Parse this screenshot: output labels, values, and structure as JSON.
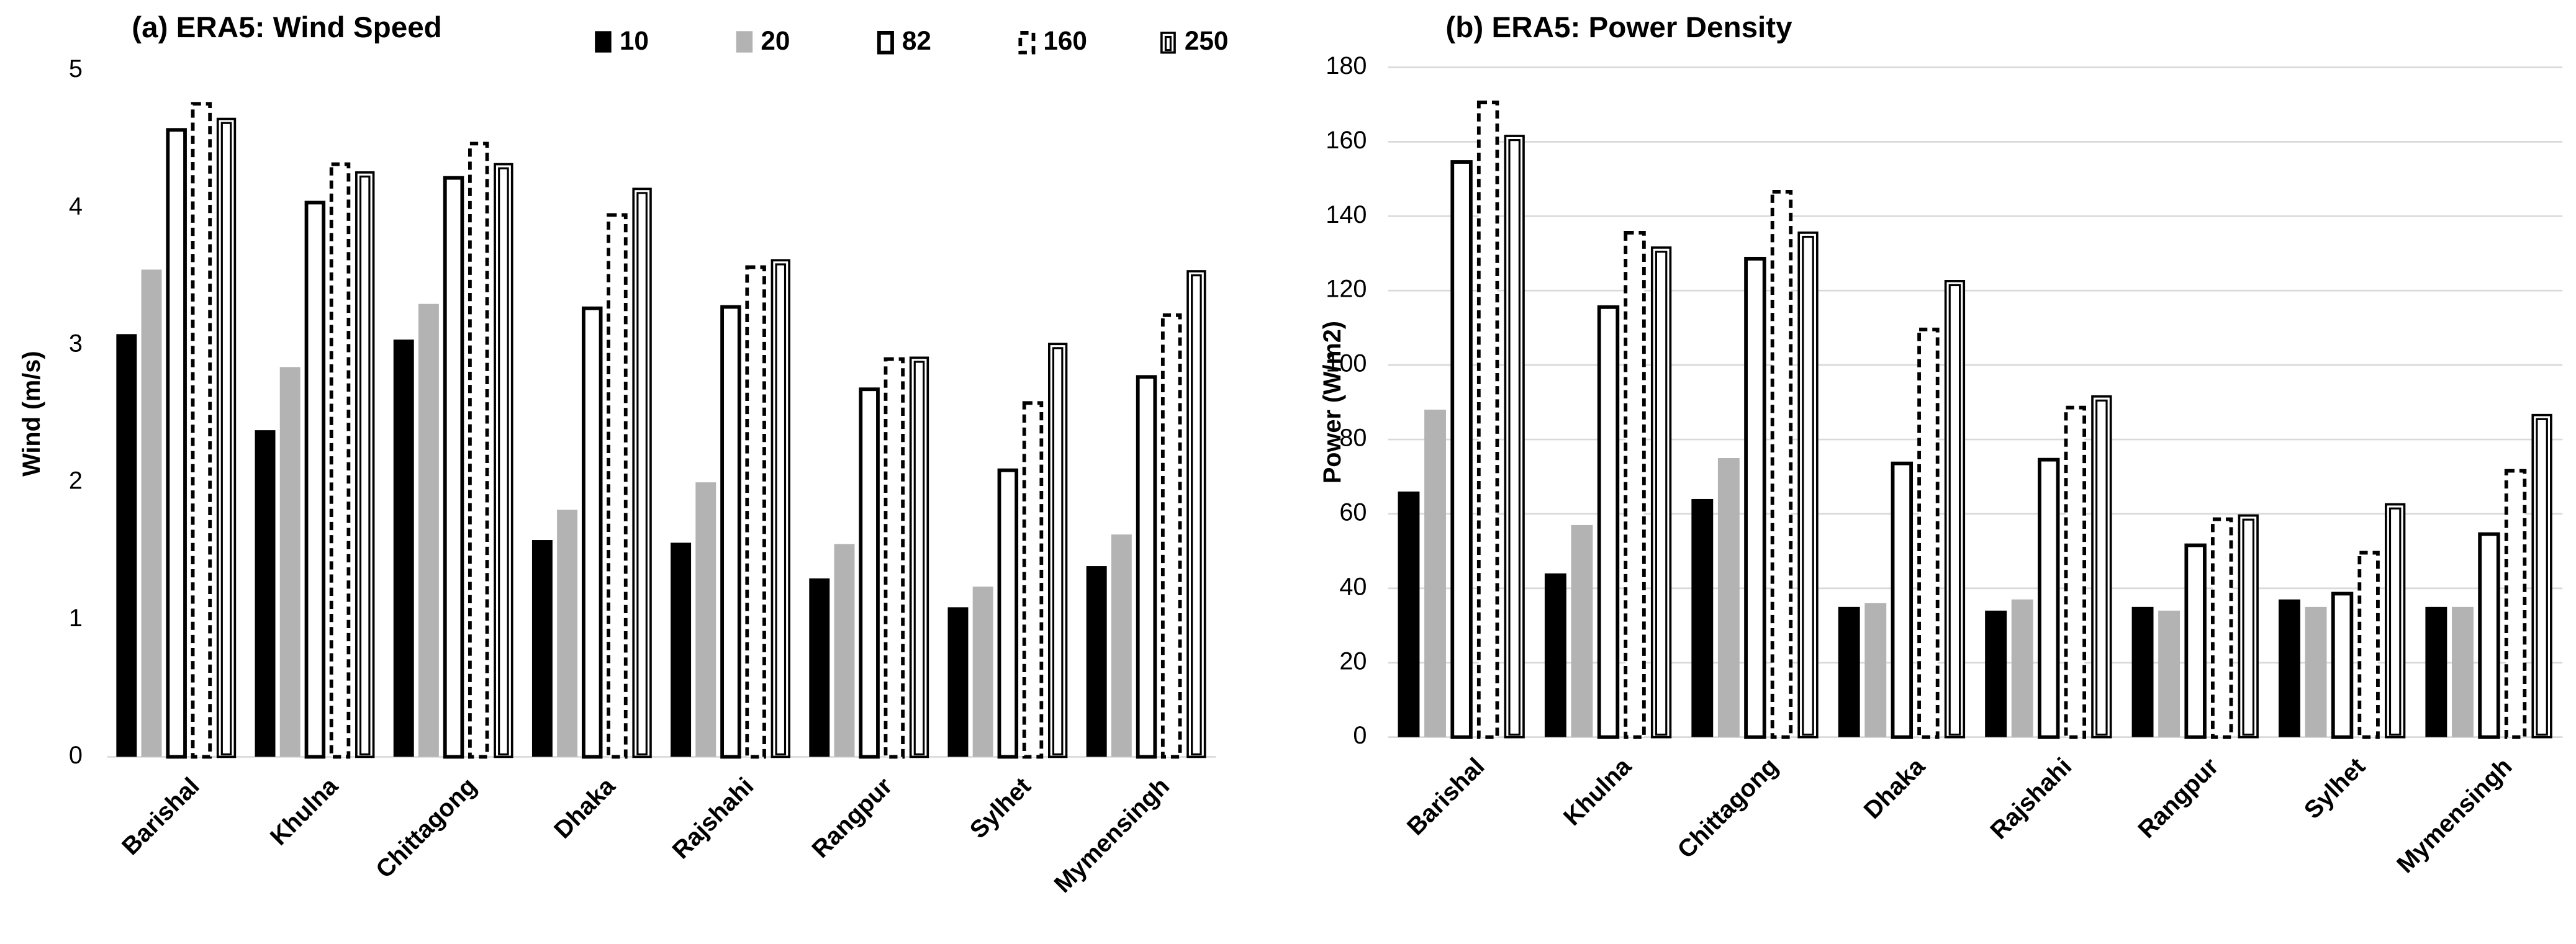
{
  "chart_data": [
    {
      "type": "bar",
      "title": "(a) ERA5: Wind Speed",
      "y_label": "Wind (m/s)",
      "categories": [
        "Barishal",
        "Khulna",
        "Chittagong",
        "Dhaka",
        "Rajshahi",
        "Rangpur",
        "Sylhet",
        "Mymensingh"
      ],
      "series": [
        {
          "name": "10",
          "color": "#000000",
          "style": "solid",
          "values": [
            3.08,
            2.38,
            3.04,
            1.58,
            1.56,
            1.3,
            1.09,
            1.39
          ]
        },
        {
          "name": "20",
          "color": "#b3b3b3",
          "style": "solid",
          "values": [
            3.55,
            2.84,
            3.3,
            1.8,
            2.0,
            1.55,
            1.24,
            1.62
          ]
        },
        {
          "name": "82",
          "color": "#000000",
          "style": "outline",
          "values": [
            4.58,
            4.05,
            4.23,
            3.28,
            3.29,
            2.69,
            2.1,
            2.78
          ]
        },
        {
          "name": "160",
          "color": "#000000",
          "style": "dashed",
          "values": [
            4.77,
            4.33,
            4.48,
            3.96,
            3.58,
            2.91,
            2.59,
            3.23
          ]
        },
        {
          "name": "250",
          "color": "#000000",
          "style": "double",
          "values": [
            4.66,
            4.27,
            4.33,
            4.15,
            3.63,
            2.92,
            3.02,
            3.55
          ]
        }
      ],
      "ylim": [
        0,
        5
      ],
      "yticks": [
        0,
        1,
        2,
        3,
        4,
        5
      ],
      "grid": false
    },
    {
      "type": "bar",
      "title": "(b) ERA5: Power Density",
      "y_label": "Power (W/m2)",
      "categories": [
        "Barishal",
        "Khulna",
        "Chittagong",
        "Dhaka",
        "Rajshahi",
        "Rangpur",
        "Sylhet",
        "Mymensingh"
      ],
      "series": [
        {
          "color": "#000000",
          "style": "solid",
          "values": [
            66,
            44,
            64,
            35,
            34,
            35,
            37,
            35
          ]
        },
        {
          "color": "#b3b3b3",
          "style": "solid",
          "values": [
            88,
            57,
            75,
            36,
            37,
            34,
            35,
            35
          ]
        },
        {
          "color": "#000000",
          "style": "outline",
          "values": [
            155,
            116,
            129,
            74,
            75,
            52,
            39,
            55
          ]
        },
        {
          "color": "#000000",
          "style": "dashed",
          "values": [
            171,
            136,
            147,
            110,
            89,
            59,
            50,
            72
          ]
        },
        {
          "color": "#000000",
          "style": "double",
          "values": [
            162,
            132,
            136,
            123,
            92,
            60,
            63,
            87
          ]
        }
      ],
      "ylim": [
        0,
        180
      ],
      "yticks": [
        0,
        20,
        40,
        60,
        80,
        100,
        120,
        140,
        160,
        180
      ],
      "grid": true
    }
  ]
}
